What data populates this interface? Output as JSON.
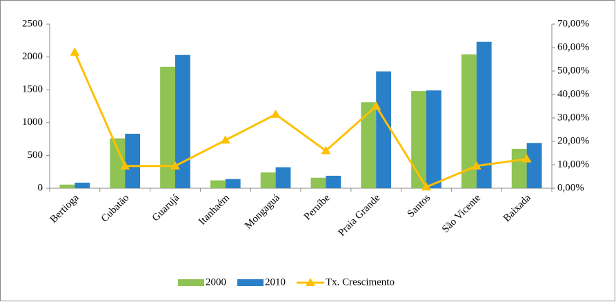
{
  "chart_data": {
    "type": "bar",
    "categories": [
      "Bertioga",
      "Cubatão",
      "Guarujá",
      "Itanhaém",
      "Mongaguá",
      "Peruíbe",
      "Praia Grande",
      "Santos",
      "São Vicente",
      "Baixada"
    ],
    "series": [
      {
        "name": "2000",
        "type": "bar",
        "color": "#8fc353",
        "values": [
          55,
          760,
          1850,
          120,
          240,
          160,
          1310,
          1480,
          2040,
          600
        ]
      },
      {
        "name": "2010",
        "type": "bar",
        "color": "#2a80c8",
        "values": [
          85,
          830,
          2030,
          140,
          320,
          190,
          1780,
          1490,
          2230,
          690
        ]
      },
      {
        "name": "Tx. Crescimento",
        "type": "line",
        "axis": "y2",
        "color": "#ffc000",
        "values": [
          58,
          9.5,
          9.5,
          20.5,
          31.5,
          16,
          35,
          0.5,
          9.5,
          12.5
        ]
      }
    ],
    "ylim": [
      0,
      2500
    ],
    "yticks": [
      0,
      500,
      1000,
      1500,
      2000,
      2500
    ],
    "y2lim": [
      0,
      70
    ],
    "y2ticks": [
      {
        "value": 0,
        "label": "0,00%"
      },
      {
        "value": 10,
        "label": "10,00%"
      },
      {
        "value": 20,
        "label": "20,00%"
      },
      {
        "value": 30,
        "label": "30,00%"
      },
      {
        "value": 40,
        "label": "40,00%"
      },
      {
        "value": 50,
        "label": "50,00%"
      },
      {
        "value": 60,
        "label": "60,00%"
      },
      {
        "value": 70,
        "label": "70,00%"
      }
    ],
    "grid": false,
    "legend": "bottom"
  }
}
